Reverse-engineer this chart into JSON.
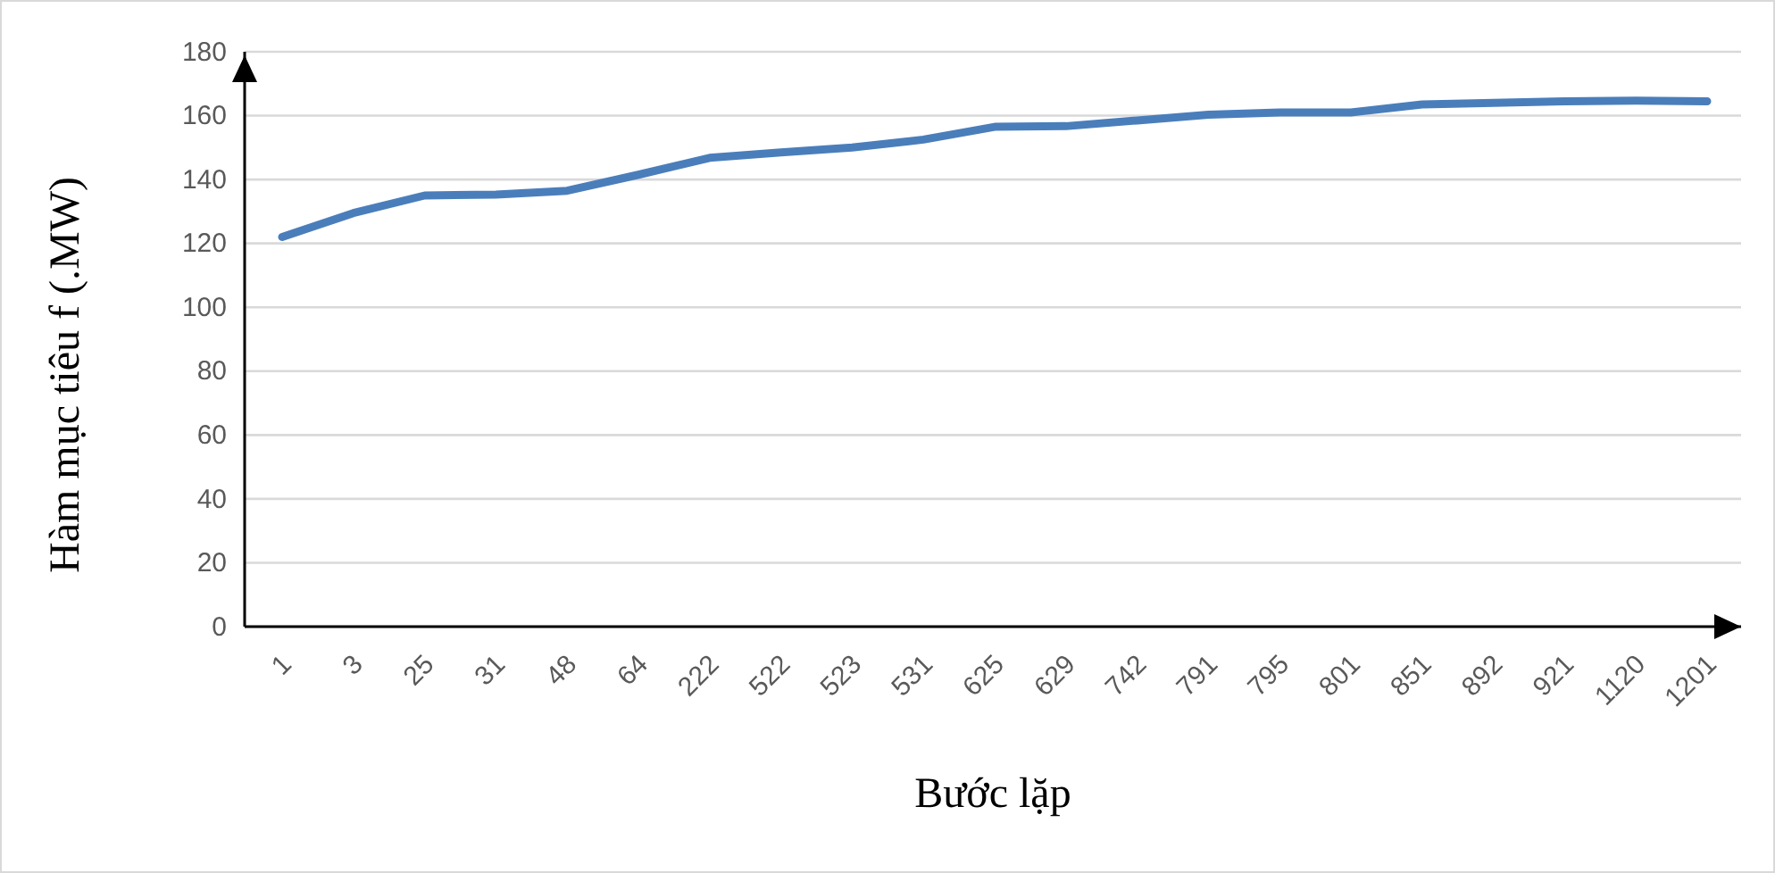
{
  "chart_data": {
    "type": "line",
    "xlabel": "Bước lặp",
    "ylabel": "Hàm mục tiêu f (.MW)",
    "categories": [
      "1",
      "3",
      "25",
      "31",
      "48",
      "64",
      "222",
      "522",
      "523",
      "531",
      "625",
      "629",
      "742",
      "791",
      "795",
      "801",
      "851",
      "892",
      "921",
      "1120",
      "1201"
    ],
    "series": [
      {
        "color": "#4a7ebb",
        "values": [
          122,
          129.5,
          135,
          135.3,
          136.5,
          141.5,
          146.8,
          148.5,
          150,
          152.5,
          156.5,
          156.7,
          158.5,
          160.3,
          161,
          161,
          163.5,
          164,
          164.5,
          164.7,
          164.5
        ]
      }
    ],
    "ylim": [
      0,
      180
    ],
    "yticks": [
      0,
      20,
      40,
      60,
      80,
      100,
      120,
      140,
      160,
      180
    ],
    "grid": "y",
    "marker": "none",
    "line_style": "solid"
  }
}
